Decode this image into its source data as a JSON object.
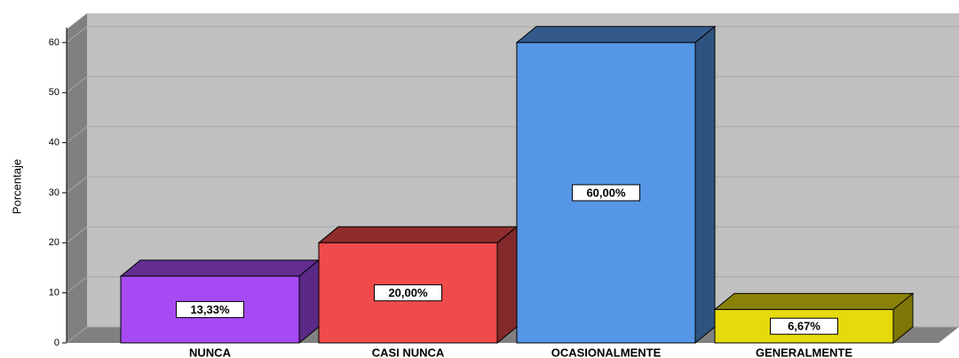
{
  "chart_data": {
    "type": "bar3d",
    "y_label": "Porcentaje",
    "categories": [
      "NUNCA",
      "CASI NUNCA",
      "OCASIONALMENTE",
      "GENERALMENTE"
    ],
    "values": [
      13.33,
      20,
      60,
      6.67
    ],
    "value_labels": [
      "13,33%",
      "20,00%",
      "60,00%",
      "6,67%"
    ],
    "colors": [
      "#a64bf4",
      "#ef4b4b",
      "#5596e6",
      "#e6d90c"
    ],
    "ylim": [
      0,
      63
    ],
    "yticks": [
      0,
      10,
      20,
      30,
      40,
      50,
      60
    ],
    "grid": true
  }
}
